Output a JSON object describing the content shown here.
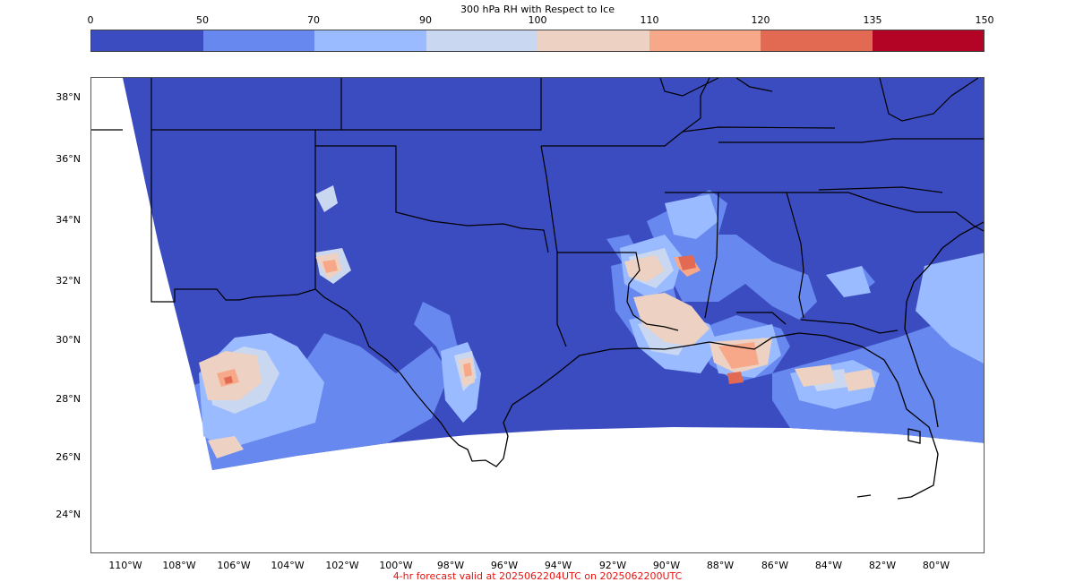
{
  "colorbar": {
    "title": "300 hPa RH with Respect to Ice",
    "ticks": [
      "0",
      "50",
      "70",
      "90",
      "100",
      "110",
      "120",
      "135",
      "150"
    ],
    "colors": [
      "#3b4cc0",
      "#6788ee",
      "#9abbff",
      "#c9d7f0",
      "#edd1c2",
      "#f7a889",
      "#e26952",
      "#b40426"
    ]
  },
  "map": {
    "lat_labels": [
      "38°N",
      "36°N",
      "34°N",
      "32°N",
      "30°N",
      "28°N",
      "26°N",
      "24°N"
    ],
    "lon_labels": [
      "110°W",
      "108°W",
      "106°W",
      "104°W",
      "102°W",
      "100°W",
      "98°W",
      "96°W",
      "94°W",
      "92°W",
      "90°W",
      "88°W",
      "86°W",
      "84°W",
      "82°W",
      "80°W"
    ],
    "field_colors": {
      "dry": "#3b4cc0",
      "low": "#6788ee",
      "mid": "#9abbff",
      "high": "#c9d7f0",
      "moist": "#edd1c2",
      "wet": "#f7a889",
      "sat": "#e26952",
      "max": "#b40426"
    }
  },
  "footer": {
    "text": "4-hr forecast valid at 2025062204UTC on 2025062200UTC"
  }
}
